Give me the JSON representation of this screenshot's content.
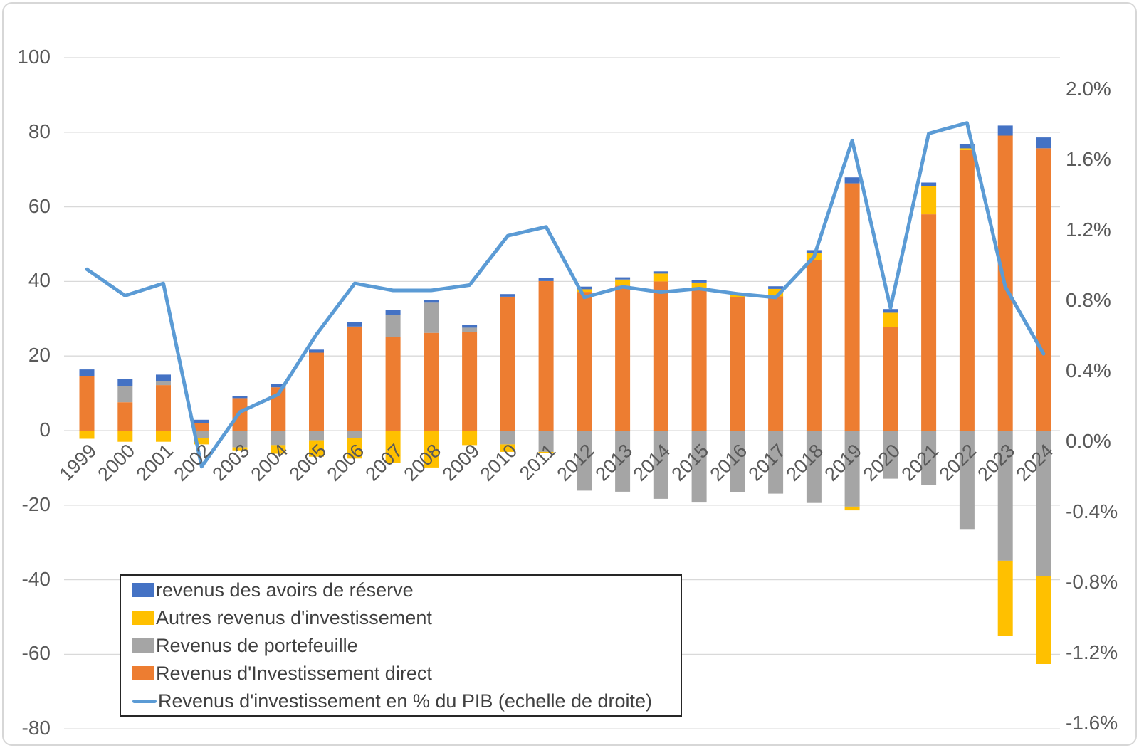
{
  "chart_data": {
    "type": "combo-stacked-bar-line",
    "title": "",
    "categories": [
      "1999",
      "2000",
      "2001",
      "2002",
      "2003",
      "2004",
      "2005",
      "2006",
      "2007",
      "2008",
      "2009",
      "2010",
      "2011",
      "2012",
      "2013",
      "2014",
      "2015",
      "2016",
      "2017",
      "2018",
      "2019",
      "2020",
      "2021",
      "2022",
      "2023",
      "2024"
    ],
    "series": [
      {
        "key": "direct",
        "name": "Revenus d'Investissement direct",
        "color": "#ED7D31",
        "values": [
          14.7,
          7.6,
          12.2,
          2.0,
          8.7,
          11.6,
          20.9,
          27.9,
          25.1,
          26.2,
          26.5,
          35.9,
          40.1,
          37.2,
          38.9,
          40.0,
          38.3,
          35.7,
          36.0,
          45.7,
          66.3,
          27.8,
          58.0,
          75.2,
          79.1,
          75.7
        ]
      },
      {
        "key": "portefeuille",
        "name": "Revenus de portefeuille",
        "color": "#A5A5A5",
        "values": [
          0,
          4.3,
          1.1,
          -2.0,
          -4.5,
          -3.9,
          -2.6,
          -1.9,
          6.0,
          8.1,
          1.1,
          -3.7,
          -5.7,
          -16.1,
          -16.4,
          -18.3,
          -19.3,
          -16.5,
          -16.9,
          -19.4,
          -20.4,
          -12.9,
          -14.6,
          -26.4,
          -34.9,
          -39.1
        ]
      },
      {
        "key": "autres",
        "name": "Autres revenus d'investissement",
        "color": "#FFC000",
        "values": [
          -2.2,
          -3.0,
          -3.0,
          -1.7,
          -0.8,
          -2.3,
          -4.4,
          -5.6,
          -8.7,
          -9.9,
          -3.9,
          -2.0,
          -0.3,
          0.7,
          1.6,
          2.1,
          1.4,
          0.7,
          2.0,
          1.9,
          -1.0,
          3.8,
          7.6,
          0.5,
          -20.1,
          -23.5
        ]
      },
      {
        "key": "reserve",
        "name": "revenus des avoirs de réserve",
        "color": "#4472C4",
        "values": [
          1.7,
          2.0,
          1.7,
          0.9,
          0.5,
          0.8,
          0.8,
          1.1,
          1.2,
          0.8,
          0.8,
          0.7,
          0.8,
          0.7,
          0.6,
          0.6,
          0.6,
          0.5,
          0.7,
          0.8,
          1.6,
          1.0,
          0.9,
          1.1,
          2.7,
          2.9
        ]
      }
    ],
    "line_series": {
      "key": "pib",
      "name": "Revenus d'investissement en % du PIB (echelle de droite)",
      "color": "#5B9BD5",
      "axis": "right",
      "values": [
        0.98,
        0.83,
        0.9,
        -0.14,
        0.17,
        0.27,
        0.61,
        0.9,
        0.86,
        0.86,
        0.89,
        1.17,
        1.22,
        0.82,
        0.88,
        0.85,
        0.87,
        0.84,
        0.82,
        1.05,
        1.71,
        0.76,
        1.75,
        1.81,
        0.88,
        0.5
      ]
    },
    "axes": {
      "left": {
        "min": -80,
        "max": 100,
        "step": 20,
        "ticks": [
          "100",
          "80",
          "60",
          "40",
          "20",
          "0",
          "-20",
          "-40",
          "-60",
          "-80"
        ]
      },
      "right": {
        "values": [
          2.0,
          1.6,
          1.2,
          0.8,
          0.4,
          0.0,
          -0.4,
          -0.8,
          -1.2,
          -1.6
        ],
        "ticks": [
          "2.0%",
          "1.6%",
          "1.2%",
          "0.8%",
          "0.4%",
          "0.0%",
          "-0.4%",
          "-0.8%",
          "-1.2%",
          "-1.6%"
        ]
      }
    },
    "grid": true,
    "gridline_color": "#D9D9D9",
    "axis_text_color": "#595959",
    "legend_position": "bottom-left-box"
  },
  "legend": {
    "items": [
      {
        "key": "reserve",
        "label": "revenus des avoirs de réserve",
        "color": "#4472C4",
        "type": "box"
      },
      {
        "key": "autres",
        "label": "Autres revenus d'investissement",
        "color": "#FFC000",
        "type": "box"
      },
      {
        "key": "portefeuille",
        "label": "Revenus de portefeuille",
        "color": "#A5A5A5",
        "type": "box"
      },
      {
        "key": "direct",
        "label": "Revenus d'Investissement direct",
        "color": "#ED7D31",
        "type": "box"
      },
      {
        "key": "pib",
        "label": "Revenus d'investissement en % du PIB (echelle de droite)",
        "color": "#5B9BD5",
        "type": "line"
      }
    ]
  }
}
